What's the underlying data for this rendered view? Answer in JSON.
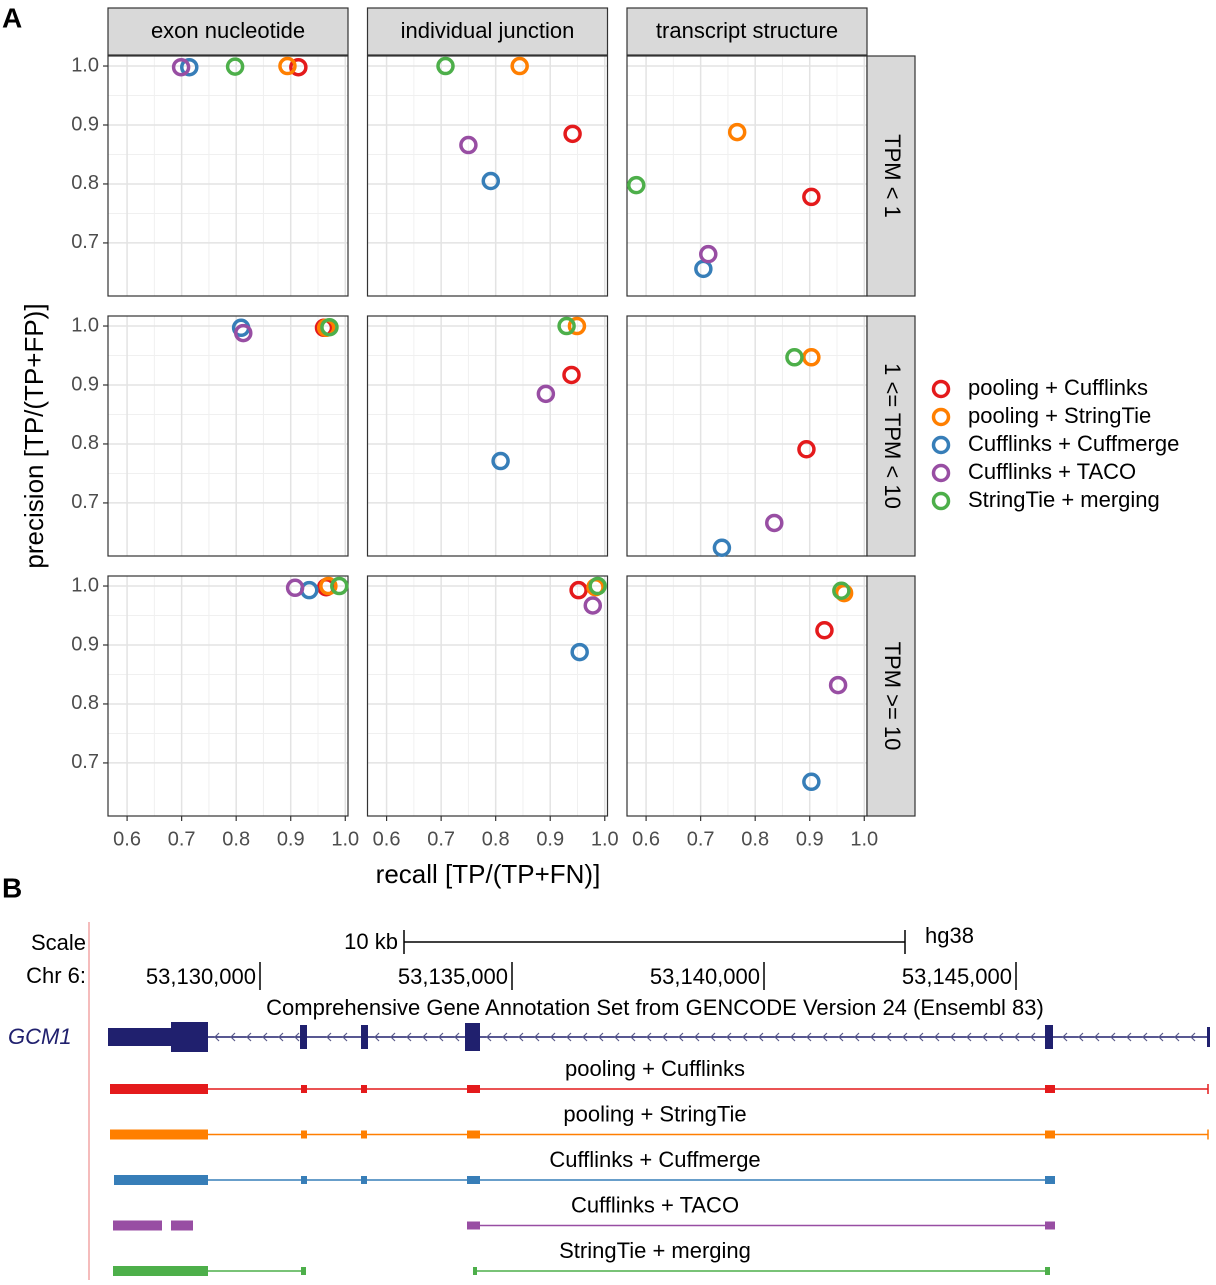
{
  "chart_data": {
    "type": "scatter",
    "label": "A",
    "x_label": "recall [TP/(TP+FN)]",
    "y_label": "precision [TP/(TP+FP)]",
    "columns": [
      "exon nucleotide",
      "individual junction",
      "transcript structure"
    ],
    "rows": [
      "TPM < 1",
      "1 <= TPM < 10",
      "TPM >= 10"
    ],
    "xlim": [
      0.565,
      1.005
    ],
    "ylim": [
      0.61,
      1.017
    ],
    "xticks": [
      0.6,
      0.7,
      0.8,
      0.9,
      {
        "value": 1,
        "label": "1.0"
      }
    ],
    "yticks": [
      0.7,
      0.8,
      0.9,
      {
        "value": 1,
        "label": "1.0"
      }
    ],
    "grid": true,
    "series": [
      {
        "name": "pooling + Cufflinks",
        "color": "#e41a1c",
        "x": [
          0.914,
          0.941,
          0.903,
          0.961,
          0.939,
          0.894,
          0.965,
          0.952,
          0.927
        ],
        "y": [
          0.998,
          0.885,
          0.778,
          0.997,
          0.917,
          0.791,
          0.998,
          0.993,
          0.925
        ]
      },
      {
        "name": "pooling + StringTie",
        "color": "#ff7f00",
        "x": [
          0.894,
          0.844,
          0.767,
          0.965,
          0.949,
          0.903,
          0.969,
          0.983,
          0.963
        ],
        "y": [
          1.0,
          1.0,
          0.888,
          0.997,
          1.0,
          0.947,
          1.0,
          0.998,
          0.988
        ]
      },
      {
        "name": "Cufflinks + Cuffmerge",
        "color": "#377eb8",
        "x": [
          0.714,
          0.791,
          0.705,
          0.809,
          0.809,
          0.739,
          0.934,
          0.954,
          0.903
        ],
        "y": [
          0.998,
          0.805,
          0.656,
          0.997,
          0.771,
          0.624,
          0.993,
          0.888,
          0.668
        ]
      },
      {
        "name": "Cufflinks + TACO",
        "color": "#984ea3",
        "x": [
          0.699,
          0.75,
          0.714,
          0.813,
          0.892,
          0.835,
          0.908,
          0.978,
          0.952
        ],
        "y": [
          0.998,
          0.866,
          0.681,
          0.988,
          0.885,
          0.666,
          0.997,
          0.967,
          0.832
        ]
      },
      {
        "name": "StringTie + merging",
        "color": "#4daf4a",
        "x": [
          0.798,
          0.708,
          0.582,
          0.971,
          0.93,
          0.872,
          0.989,
          0.987,
          0.958
        ],
        "y": [
          0.999,
          1.0,
          0.798,
          0.998,
          1.0,
          0.947,
          1.0,
          1.0,
          0.992
        ]
      }
    ]
  },
  "genome_browser": {
    "label": "B",
    "scale_label": "Scale",
    "scale_text": "10 kb",
    "assembly": "hg38",
    "chrom": "Chr 6:",
    "positions": [
      "53,130,000",
      "53,135,000",
      "53,140,000",
      "53,145,000"
    ],
    "track_title": "Comprehensive Gene Annotation Set from GENCODE Version 24 (Ensembl 83)",
    "gene": "GCM1",
    "tracks": [
      "pooling + Cufflinks",
      "pooling + StringTie",
      "Cufflinks + Cuffmerge",
      "Cufflinks + TACO",
      "StringTie + merging"
    ]
  }
}
